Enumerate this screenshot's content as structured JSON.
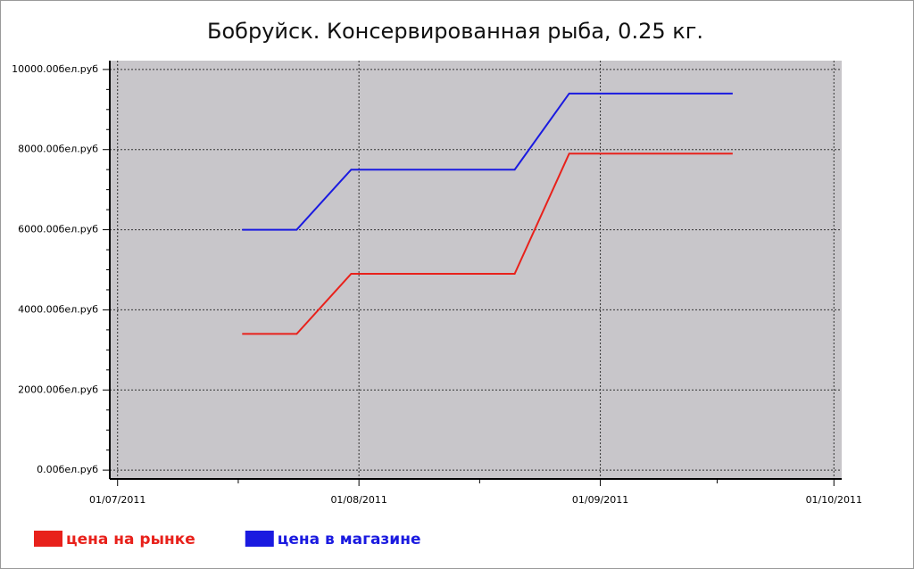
{
  "chart_data": {
    "type": "line",
    "title": "Бобруйск. Консервированная рыба, 0.25 кг.",
    "x": [
      "2011-07-17",
      "2011-07-24",
      "2011-07-31",
      "2011-08-07",
      "2011-08-14",
      "2011-08-21",
      "2011-08-28",
      "2011-09-04",
      "2011-09-11",
      "2011-09-18"
    ],
    "series": [
      {
        "name": "цена на рынке",
        "color": "#e8211b",
        "values": [
          3400,
          3400,
          4900,
          4900,
          4900,
          4900,
          7900,
          7900,
          7900,
          7900
        ]
      },
      {
        "name": "цена в магазине",
        "color": "#1a1ae0",
        "values": [
          6000,
          6000,
          7500,
          7500,
          7500,
          7500,
          9400,
          9400,
          9400,
          9400
        ]
      }
    ],
    "xlim": [
      "2011-06-30",
      "2011-10-02"
    ],
    "xticks": [
      {
        "value": "2011-07-01",
        "label": "01/07/2011"
      },
      {
        "value": "2011-08-01",
        "label": "01/08/2011"
      },
      {
        "value": "2011-09-01",
        "label": "01/09/2011"
      },
      {
        "value": "2011-10-01",
        "label": "01/10/2011"
      }
    ],
    "ylim": [
      -220,
      10220
    ],
    "yticks": [
      {
        "value": 0,
        "label": "0.00бел.руб"
      },
      {
        "value": 2000,
        "label": "2000.00бел.руб"
      },
      {
        "value": 4000,
        "label": "4000.00бел.руб"
      },
      {
        "value": 6000,
        "label": "6000.00бел.руб"
      },
      {
        "value": 8000,
        "label": "8000.00бел.руб"
      },
      {
        "value": 10000,
        "label": "10000.00бел.руб"
      }
    ],
    "grid": true,
    "legend": "bottom-left"
  }
}
